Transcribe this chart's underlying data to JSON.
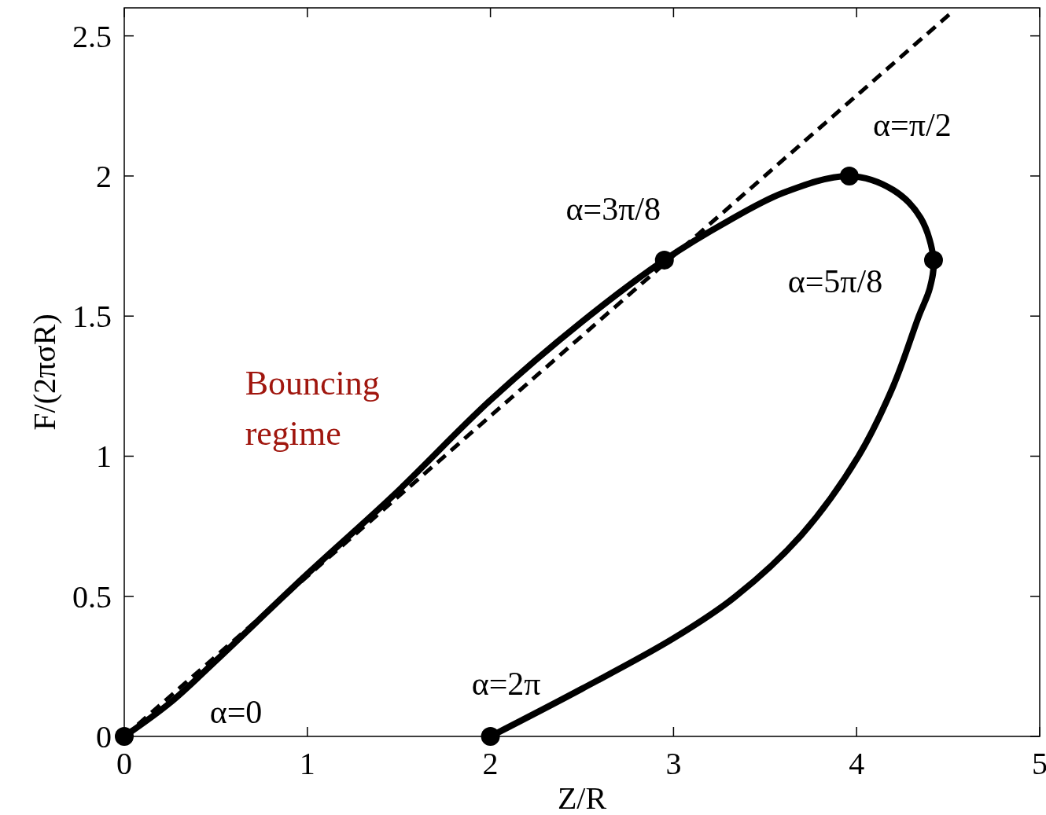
{
  "chart_data": {
    "type": "line",
    "xlabel": "Z/R",
    "ylabel": "F/(2πσR)",
    "xlim": [
      0,
      5
    ],
    "ylim": [
      0,
      2.6
    ],
    "xticks": [
      0,
      1,
      2,
      3,
      4,
      5
    ],
    "yticks": [
      0,
      0.5,
      1,
      1.5,
      2,
      2.5
    ],
    "series": [
      {
        "color": "#000000",
        "line_style": "dashed",
        "marker": "none",
        "x": [
          0,
          4.53
        ],
        "values": [
          0,
          2.59
        ]
      },
      {
        "color": "#000000",
        "line_style": "solid",
        "marker": "none",
        "x": [
          0,
          0.25,
          0.5,
          1,
          1.47,
          2,
          2.5,
          2.95,
          3.3,
          3.6,
          3.96,
          4.2,
          4.35,
          4.42,
          4.4,
          4.34,
          4.2,
          4.01,
          3.7,
          3.34,
          3,
          2.5,
          2
        ],
        "values": [
          0,
          0.12,
          0.27,
          0.58,
          0.86,
          1.2,
          1.48,
          1.7,
          1.84,
          1.94,
          2,
          1.95,
          1.85,
          1.7,
          1.6,
          1.5,
          1.25,
          1,
          0.72,
          0.5,
          0.35,
          0.17,
          0
        ]
      },
      {
        "type": "scatter",
        "color": "#000000",
        "marker": "circle",
        "x": [
          0,
          2.95,
          3.96,
          4.42,
          2
        ],
        "values": [
          0,
          1.7,
          2,
          1.7,
          0
        ]
      }
    ],
    "annotations": [
      {
        "text": "α=0",
        "x": 0,
        "y": 0
      },
      {
        "text": "α=3π/8",
        "x": 2.95,
        "y": 1.7
      },
      {
        "text": "α=π/2",
        "x": 3.96,
        "y": 2
      },
      {
        "text": "α=5π/8",
        "x": 4.42,
        "y": 1.7
      },
      {
        "text": "α=2π",
        "x": 2,
        "y": 0
      },
      "Bouncing regime"
    ]
  }
}
